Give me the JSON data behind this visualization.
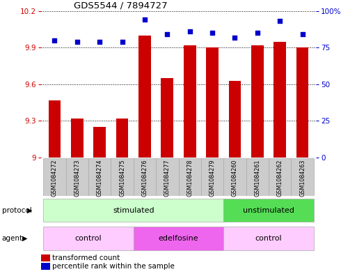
{
  "title": "GDS5544 / 7894727",
  "samples": [
    "GSM1084272",
    "GSM1084273",
    "GSM1084274",
    "GSM1084275",
    "GSM1084276",
    "GSM1084277",
    "GSM1084278",
    "GSM1084279",
    "GSM1084260",
    "GSM1084261",
    "GSM1084262",
    "GSM1084263"
  ],
  "bar_values": [
    9.47,
    9.32,
    9.25,
    9.32,
    10.0,
    9.65,
    9.92,
    9.9,
    9.63,
    9.92,
    9.95,
    9.9
  ],
  "dot_values": [
    80,
    79,
    79,
    79,
    94,
    84,
    86,
    85,
    82,
    85,
    93,
    84
  ],
  "bar_color": "#cc0000",
  "dot_color": "#0000cc",
  "ylim_left": [
    9.0,
    10.2
  ],
  "ylim_right": [
    0,
    100
  ],
  "yticks_left": [
    9.0,
    9.3,
    9.6,
    9.9,
    10.2
  ],
  "yticks_right": [
    0,
    25,
    50,
    75,
    100
  ],
  "ytick_labels_left": [
    "9",
    "9.3",
    "9.6",
    "9.9",
    "10.2"
  ],
  "ytick_labels_right": [
    "0",
    "25",
    "50",
    "75",
    "100%"
  ],
  "bar_bottom": 9.0,
  "protocol_groups": [
    {
      "label": "stimulated",
      "start": 0,
      "end": 8,
      "color": "#ccffcc"
    },
    {
      "label": "unstimulated",
      "start": 8,
      "end": 12,
      "color": "#55dd55"
    }
  ],
  "agent_groups": [
    {
      "label": "control",
      "start": 0,
      "end": 4,
      "color": "#ffccff"
    },
    {
      "label": "edelfosine",
      "start": 4,
      "end": 8,
      "color": "#ee66ee"
    },
    {
      "label": "control",
      "start": 8,
      "end": 12,
      "color": "#ffccff"
    }
  ],
  "legend_bar_color": "#cc0000",
  "legend_dot_color": "#0000cc",
  "legend_bar_label": "transformed count",
  "legend_dot_label": "percentile rank within the sample",
  "bg_color": "#ffffff",
  "grid_color": "#000000",
  "tick_color_left": "#cc0000",
  "tick_color_right": "#0000cc",
  "bar_width": 0.55,
  "sample_bg_color": "#cccccc",
  "border_color": "#aaaaaa"
}
